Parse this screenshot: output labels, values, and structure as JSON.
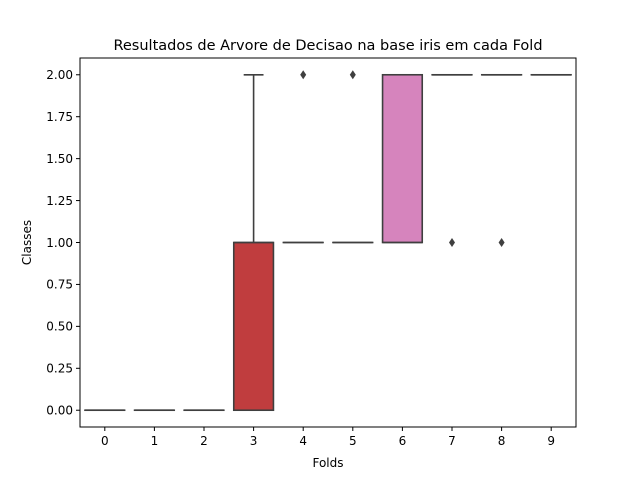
{
  "chart_data": {
    "type": "box",
    "title": "Resultados de Arvore de Decisao na base iris em cada Fold",
    "xlabel": "Folds",
    "ylabel": "Classes",
    "ylim": [
      -0.1,
      2.1
    ],
    "yticks": [
      0.0,
      0.25,
      0.5,
      0.75,
      1.0,
      1.25,
      1.5,
      1.75,
      2.0
    ],
    "ytick_labels": [
      "0.00",
      "0.25",
      "0.50",
      "0.75",
      "1.00",
      "1.25",
      "1.50",
      "1.75",
      "2.00"
    ],
    "grid": false,
    "legend": "none",
    "categories": [
      "0",
      "1",
      "2",
      "3",
      "4",
      "5",
      "6",
      "7",
      "8",
      "9"
    ],
    "boxes": [
      {
        "fold": "0",
        "q1": 0,
        "median": 0,
        "q3": 0,
        "whisker_low": 0,
        "whisker_high": 0,
        "outliers": [],
        "color": "#3274a1"
      },
      {
        "fold": "1",
        "q1": 0,
        "median": 0,
        "q3": 0,
        "whisker_low": 0,
        "whisker_high": 0,
        "outliers": [],
        "color": "#e1812c"
      },
      {
        "fold": "2",
        "q1": 0,
        "median": 0,
        "q3": 0,
        "whisker_low": 0,
        "whisker_high": 0,
        "outliers": [],
        "color": "#3a923a"
      },
      {
        "fold": "3",
        "q1": 0,
        "median": 1,
        "q3": 1,
        "whisker_low": 0,
        "whisker_high": 2,
        "outliers": [],
        "color": "#c03d3e"
      },
      {
        "fold": "4",
        "q1": 1,
        "median": 1,
        "q3": 1,
        "whisker_low": 1,
        "whisker_high": 1,
        "outliers": [
          2
        ],
        "color": "#9372b2"
      },
      {
        "fold": "5",
        "q1": 1,
        "median": 1,
        "q3": 1,
        "whisker_low": 1,
        "whisker_high": 1,
        "outliers": [
          2
        ],
        "color": "#845b53"
      },
      {
        "fold": "6",
        "q1": 1,
        "median": 1,
        "q3": 2,
        "whisker_low": 1,
        "whisker_high": 2,
        "outliers": [],
        "color": "#d684bd"
      },
      {
        "fold": "7",
        "q1": 2,
        "median": 2,
        "q3": 2,
        "whisker_low": 2,
        "whisker_high": 2,
        "outliers": [
          1
        ],
        "color": "#7f7f7f"
      },
      {
        "fold": "8",
        "q1": 2,
        "median": 2,
        "q3": 2,
        "whisker_low": 2,
        "whisker_high": 2,
        "outliers": [
          1
        ],
        "color": "#a9aa35"
      },
      {
        "fold": "9",
        "q1": 2,
        "median": 2,
        "q3": 2,
        "whisker_low": 2,
        "whisker_high": 2,
        "outliers": [],
        "color": "#2e9fae"
      }
    ],
    "line_color": "#3f3f3f"
  }
}
